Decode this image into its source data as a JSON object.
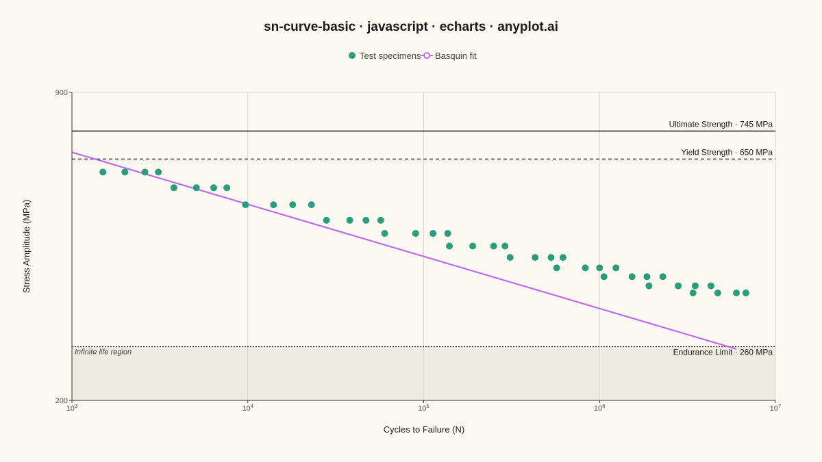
{
  "chart_data": {
    "type": "scatter",
    "title": "sn-curve-basic · javascript · echarts · anyplot.ai",
    "xlabel": "Cycles to Failure (N)",
    "ylabel": "Stress Amplitude (MPa)",
    "x_scale": "log",
    "y_scale": "log",
    "xlim": [
      1000,
      10000000
    ],
    "ylim": [
      200,
      900
    ],
    "x_ticks": [
      {
        "value": 1000,
        "base": "10",
        "exp": "3"
      },
      {
        "value": 10000,
        "base": "10",
        "exp": "4"
      },
      {
        "value": 100000,
        "base": "10",
        "exp": "5"
      },
      {
        "value": 1000000,
        "base": "10",
        "exp": "6"
      },
      {
        "value": 10000000,
        "base": "10",
        "exp": "7"
      }
    ],
    "y_ticks": [
      {
        "value": 200,
        "label": "200"
      },
      {
        "value": 900,
        "label": "900"
      }
    ],
    "grid": "vertical",
    "legend_position": "top-center",
    "legend": [
      {
        "name": "Test specimens",
        "color": "#2A9D7C",
        "marker": "dot"
      },
      {
        "name": "Basquin fit",
        "color": "#C06CF2",
        "marker": "line-circle"
      }
    ],
    "series": [
      {
        "name": "Test specimens",
        "type": "scatter",
        "color": "#2A9D7C",
        "points": [
          [
            1500,
            610
          ],
          [
            2000,
            610
          ],
          [
            2600,
            610
          ],
          [
            3100,
            610
          ],
          [
            3800,
            565
          ],
          [
            5100,
            565
          ],
          [
            6400,
            565
          ],
          [
            7600,
            565
          ],
          [
            9700,
            520
          ],
          [
            14000,
            520
          ],
          [
            18000,
            520
          ],
          [
            23000,
            520
          ],
          [
            28000,
            482
          ],
          [
            38000,
            482
          ],
          [
            47000,
            482
          ],
          [
            57000,
            482
          ],
          [
            60000,
            452
          ],
          [
            90000,
            452
          ],
          [
            113000,
            452
          ],
          [
            137000,
            452
          ],
          [
            140000,
            425
          ],
          [
            190000,
            425
          ],
          [
            250000,
            425
          ],
          [
            290000,
            425
          ],
          [
            310000,
            402
          ],
          [
            430000,
            402
          ],
          [
            530000,
            402
          ],
          [
            620000,
            402
          ],
          [
            570000,
            382
          ],
          [
            830000,
            382
          ],
          [
            1000000,
            382
          ],
          [
            1240000,
            382
          ],
          [
            1060000,
            366
          ],
          [
            1530000,
            366
          ],
          [
            1860000,
            366
          ],
          [
            2290000,
            366
          ],
          [
            1910000,
            350
          ],
          [
            2800000,
            350
          ],
          [
            3500000,
            350
          ],
          [
            4300000,
            350
          ],
          [
            3400000,
            338
          ],
          [
            4700000,
            338
          ],
          [
            6000000,
            338
          ],
          [
            6800000,
            338
          ]
        ]
      },
      {
        "name": "Basquin fit",
        "type": "line",
        "color": "#C06CF2",
        "points": [
          [
            1000,
            672
          ],
          [
            6000000,
            257
          ]
        ]
      }
    ],
    "reference_lines": [
      {
        "name": "ultimate",
        "value": 745,
        "label": "Ultimate Strength · 745 MPa",
        "style": "solid",
        "color": "#1a1a1a"
      },
      {
        "name": "yield",
        "value": 650,
        "label": "Yield Strength · 650 MPa",
        "style": "dashed",
        "color": "#1a1a1a"
      },
      {
        "name": "endurance",
        "value": 260,
        "label": "Endurance Limit · 260 MPa",
        "style": "dotted",
        "color": "#1a1a1a"
      }
    ],
    "shaded_region": {
      "label": "Infinite life region",
      "from": 200,
      "to": 260,
      "color": "#EDEAE2"
    }
  }
}
